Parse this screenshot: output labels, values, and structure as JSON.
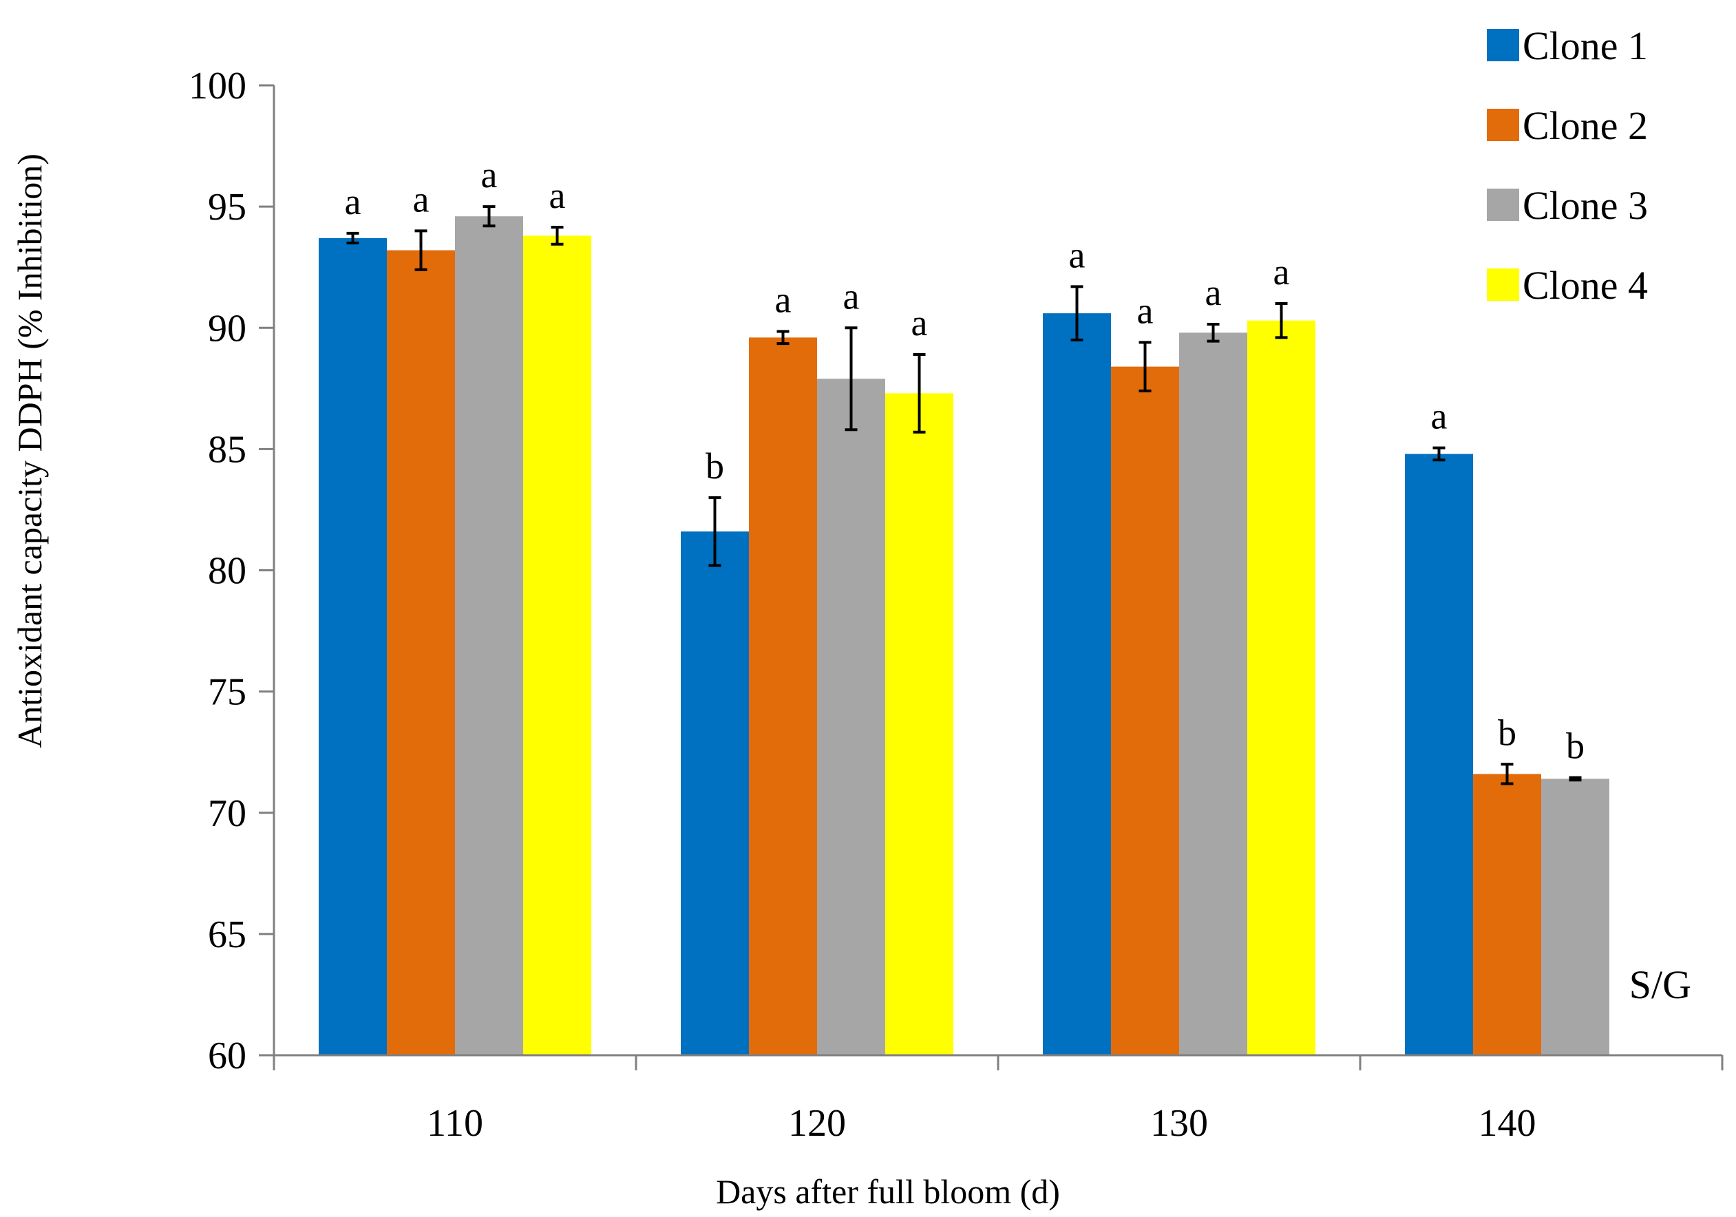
{
  "chart_data": {
    "type": "bar",
    "title": "",
    "xlabel": "Days after full bloom (d)",
    "ylabel": "Antioxidant capacity DDPH (% Inhibition)",
    "ylim": [
      60,
      100
    ],
    "yticks": [
      60,
      65,
      70,
      75,
      80,
      85,
      90,
      95,
      100
    ],
    "categories": [
      "110",
      "120",
      "130",
      "140"
    ],
    "legend_position": "top-right",
    "annotation": "S/G",
    "series": [
      {
        "name": "Clone 1",
        "color": "#0070C0",
        "values": [
          93.7,
          81.6,
          90.6,
          84.8
        ],
        "errors": [
          0.2,
          1.4,
          1.1,
          0.25
        ],
        "letters": [
          "a",
          "b",
          "a",
          "a"
        ]
      },
      {
        "name": "Clone 2",
        "color": "#E36C0A",
        "values": [
          93.2,
          89.6,
          88.4,
          71.6
        ],
        "errors": [
          0.8,
          0.25,
          1.0,
          0.4
        ],
        "letters": [
          "a",
          "a",
          "a",
          "b"
        ]
      },
      {
        "name": "Clone 3",
        "color": "#A6A6A6",
        "values": [
          94.6,
          87.9,
          89.8,
          71.4
        ],
        "errors": [
          0.4,
          2.1,
          0.35,
          0.05
        ],
        "letters": [
          "a",
          "a",
          "a",
          "b"
        ]
      },
      {
        "name": "Clone 4",
        "color": "#FFFF00",
        "values": [
          93.8,
          87.3,
          90.3,
          null
        ],
        "errors": [
          0.35,
          1.6,
          0.7,
          null
        ],
        "letters": [
          "a",
          "a",
          "a",
          null
        ]
      }
    ]
  }
}
